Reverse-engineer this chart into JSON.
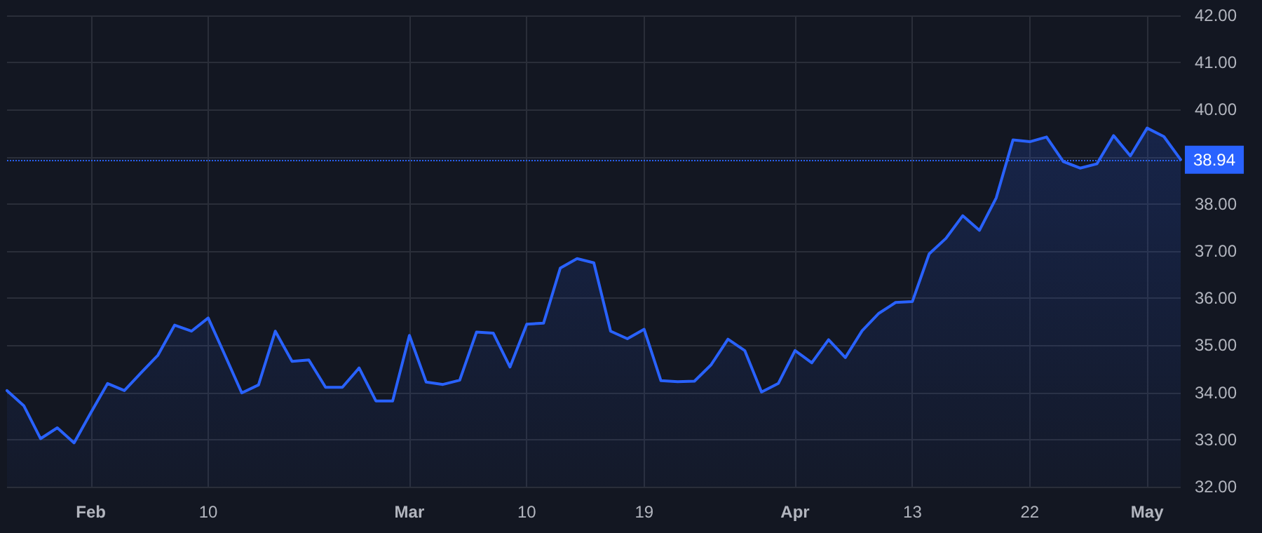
{
  "chart_data": {
    "type": "area",
    "categories": [
      null,
      null,
      null,
      null,
      null,
      "Feb",
      null,
      null,
      null,
      null,
      null,
      null,
      "10",
      null,
      null,
      null,
      null,
      null,
      null,
      null,
      null,
      null,
      null,
      null,
      "Mar",
      null,
      null,
      null,
      null,
      null,
      null,
      "10",
      null,
      null,
      null,
      null,
      null,
      null,
      "19",
      null,
      null,
      null,
      null,
      null,
      null,
      null,
      null,
      "Apr",
      null,
      null,
      null,
      null,
      null,
      null,
      "13",
      null,
      null,
      null,
      null,
      null,
      null,
      "22",
      null,
      null,
      null,
      null,
      null,
      null,
      "May",
      null,
      null
    ],
    "series": [
      {
        "color": "#2962ff",
        "values": [
          34.04,
          33.72,
          33.02,
          33.25,
          32.93,
          33.57,
          34.19,
          34.04,
          34.42,
          34.79,
          35.43,
          35.3,
          35.58,
          34.79,
          33.99,
          34.16,
          35.3,
          34.66,
          34.69,
          34.11,
          34.11,
          34.52,
          33.82,
          33.82,
          35.21,
          34.22,
          34.17,
          34.26,
          35.28,
          35.26,
          34.54,
          35.45,
          35.47,
          36.64,
          36.84,
          36.75,
          35.3,
          35.14,
          35.34,
          34.25,
          34.23,
          34.24,
          34.59,
          35.13,
          34.89,
          34.01,
          34.19,
          34.89,
          34.63,
          35.12,
          34.74,
          35.31,
          35.68,
          35.91,
          35.93,
          36.94,
          37.27,
          37.75,
          37.44,
          38.13,
          39.36,
          39.32,
          39.42,
          38.9,
          38.76,
          38.85,
          39.45,
          39.02,
          39.61,
          39.43,
          38.94
        ]
      }
    ],
    "ylim": [
      32,
      42
    ],
    "yticks": [
      {
        "value": 32,
        "label": "32.00"
      },
      {
        "value": 33,
        "label": "33.00"
      },
      {
        "value": 34,
        "label": "34.00"
      },
      {
        "value": 35,
        "label": "35.00"
      },
      {
        "value": 36,
        "label": "36.00"
      },
      {
        "value": 37,
        "label": "37.00"
      },
      {
        "value": 38,
        "label": "38.00"
      },
      {
        "value": 39,
        "label": null
      },
      {
        "value": 40,
        "label": "40.00"
      },
      {
        "value": 41,
        "label": "41.00"
      },
      {
        "value": 42,
        "label": "42.00"
      }
    ],
    "ref_lines": [
      {
        "axis": "y",
        "value": 38.94,
        "label": "38.94",
        "color": "#2962ff",
        "line_style": "dotted"
      }
    ],
    "grid": true,
    "marker": "none",
    "line_style": "solid"
  }
}
